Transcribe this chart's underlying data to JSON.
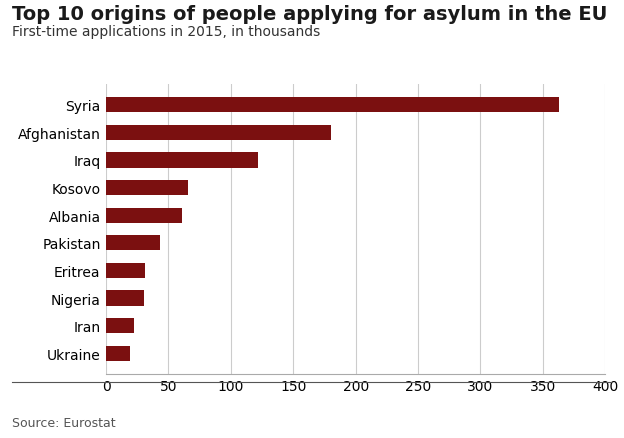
{
  "title": "Top 10 origins of people applying for asylum in the EU",
  "subtitle": "First-time applications in 2015, in thousands",
  "source": "Source: Eurostat",
  "categories": [
    "Syria",
    "Afghanistan",
    "Iraq",
    "Kosovo",
    "Albania",
    "Pakistan",
    "Eritrea",
    "Nigeria",
    "Iran",
    "Ukraine"
  ],
  "values": [
    363,
    180,
    122,
    66,
    61,
    43,
    31,
    30,
    22,
    19
  ],
  "bar_color": "#7B1010",
  "xlim": [
    0,
    400
  ],
  "xticks": [
    0,
    50,
    100,
    150,
    200,
    250,
    300,
    350,
    400
  ],
  "background_color": "#ffffff",
  "title_fontsize": 14,
  "subtitle_fontsize": 10,
  "tick_fontsize": 10,
  "source_fontsize": 9
}
